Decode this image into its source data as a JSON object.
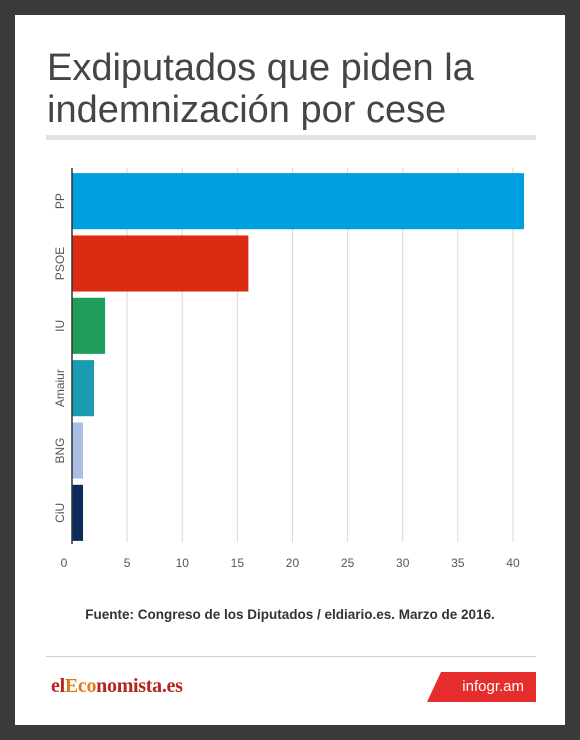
{
  "header": {
    "title": "Exdiputados que piden la\nindemnización por cese"
  },
  "chart_data": {
    "type": "bar",
    "orientation": "horizontal",
    "categories": [
      "PP",
      "PSOE",
      "IU",
      "Amaiur",
      "BNG",
      "CiU"
    ],
    "values": [
      41,
      16,
      3,
      2,
      1,
      1
    ],
    "colors": [
      "#009fdf",
      "#dd2a12",
      "#1f9e5a",
      "#1b9bb2",
      "#a9bfe6",
      "#0d2a5e"
    ],
    "xticks": [
      0,
      5,
      10,
      15,
      20,
      25,
      30,
      35,
      40
    ],
    "xlim": [
      0,
      41
    ],
    "grid": true,
    "legend": "none"
  },
  "footer": {
    "source": "Fuente: Congreso de los Diputados / eldiario.es. Marzo de 2016.",
    "brand_prefix": "el",
    "brand_highlight": "Eco",
    "brand_suffix": "nomista.es",
    "badge": "infogr.am"
  }
}
